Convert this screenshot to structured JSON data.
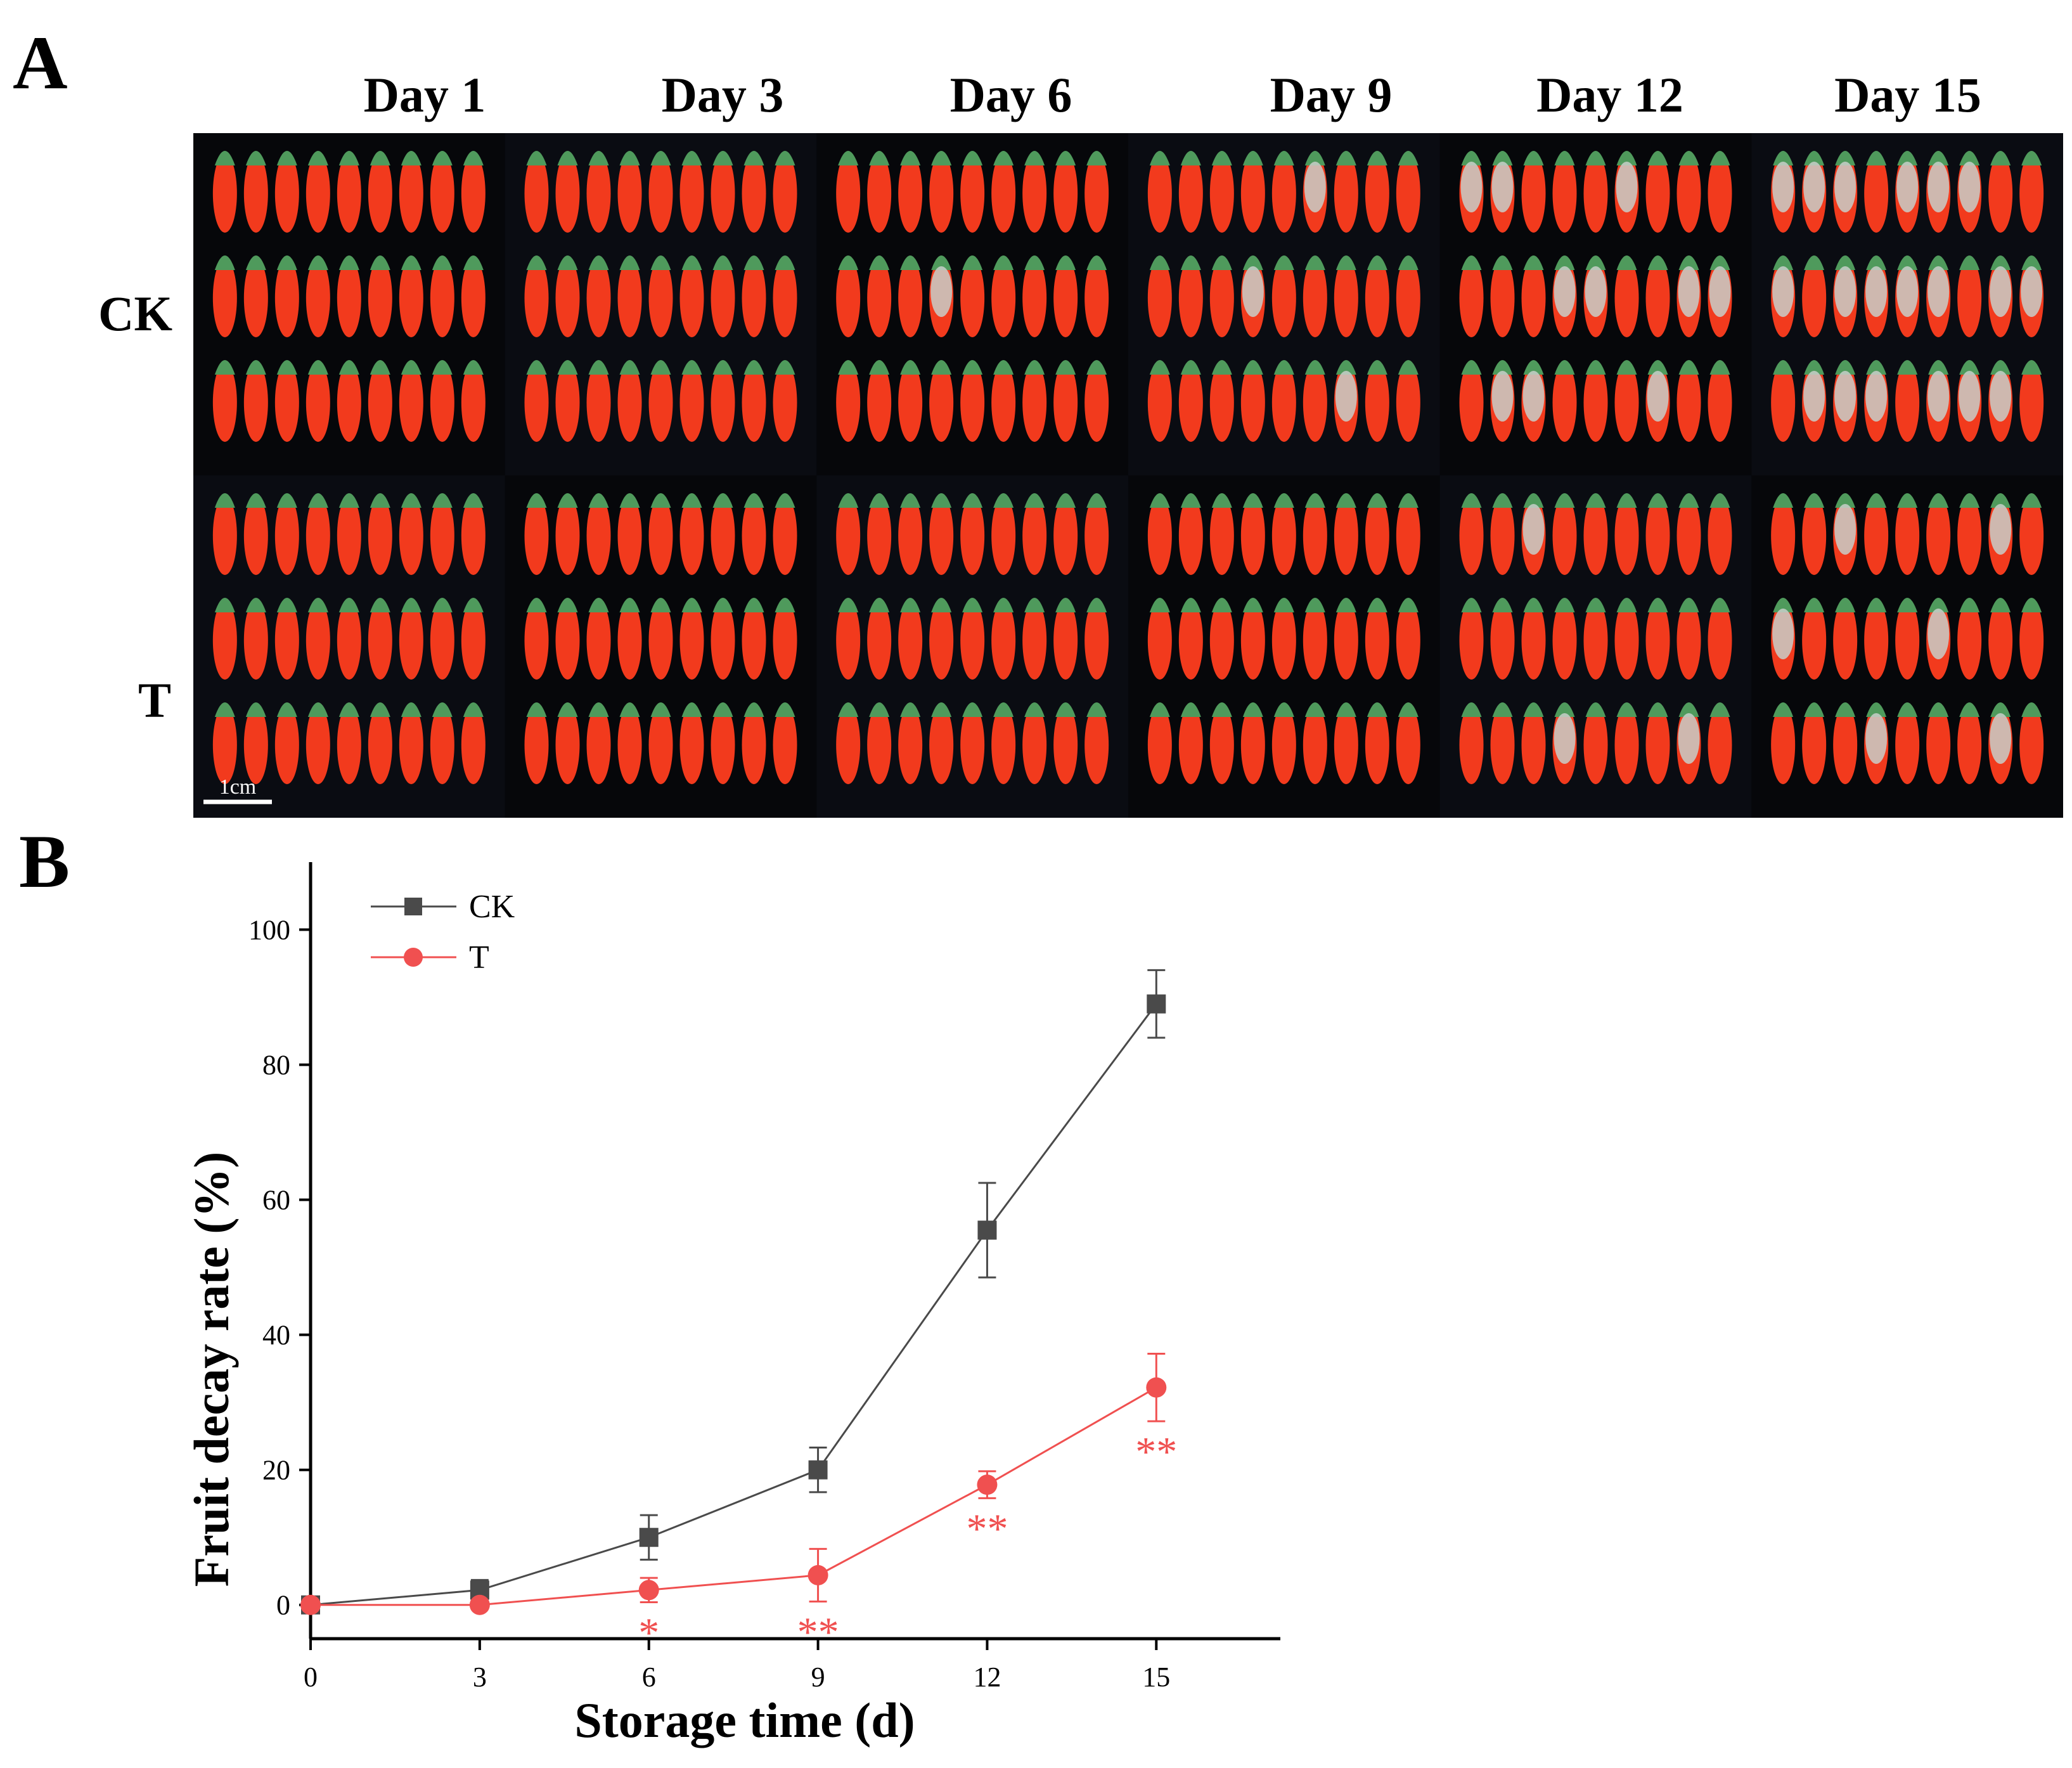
{
  "panel_a": {
    "letter": "A",
    "days": [
      "Day 1",
      "Day 3",
      "Day 6",
      "Day 9",
      "Day 12",
      "Day 15"
    ],
    "rows": [
      "CK",
      "T"
    ],
    "scale_bar_label": "1cm",
    "colors": {
      "fruit": "#f23a1d",
      "calyx": "#4f9a5c",
      "mold": "#c8cfc9",
      "background": "#050608"
    },
    "fruits_per_row": [
      9,
      9,
      9,
      9,
      9,
      9
    ],
    "decay_level": {
      "CK": [
        0,
        0.05,
        0.1,
        0.2,
        0.55,
        0.9
      ],
      "T": [
        0,
        0,
        0.02,
        0.05,
        0.18,
        0.33
      ]
    }
  },
  "panel_b": {
    "letter": "B"
  },
  "chart_data": {
    "type": "line",
    "xlabel": "Storage time (d)",
    "ylabel": "Fruit decay rate (%)",
    "x": [
      0,
      3,
      6,
      9,
      12,
      15
    ],
    "xticks": [
      0,
      3,
      6,
      9,
      12,
      15
    ],
    "yticks": [
      0,
      20,
      40,
      60,
      80,
      100
    ],
    "xlim": [
      0,
      17.2
    ],
    "ylim": [
      -5,
      110
    ],
    "grid": false,
    "legend": "top-left",
    "series": [
      {
        "name": "CK",
        "marker": "square",
        "color": "#4a4a4a",
        "values": [
          0,
          2.2,
          10,
          20,
          55.5,
          89
        ],
        "errors": [
          0.5,
          1.5,
          3.3,
          3.3,
          7,
          5
        ]
      },
      {
        "name": "T",
        "marker": "circle",
        "color": "#f05050",
        "values": [
          0,
          0,
          2.2,
          4.4,
          17.8,
          32.2
        ],
        "errors": [
          0.3,
          0.3,
          1.8,
          3.9,
          2,
          5
        ]
      }
    ],
    "annotations": [
      {
        "x": 6,
        "text": "*"
      },
      {
        "x": 9,
        "text": "**"
      },
      {
        "x": 12,
        "text": "**"
      },
      {
        "x": 15,
        "text": "**"
      }
    ],
    "annotation_color": "#f05050"
  }
}
